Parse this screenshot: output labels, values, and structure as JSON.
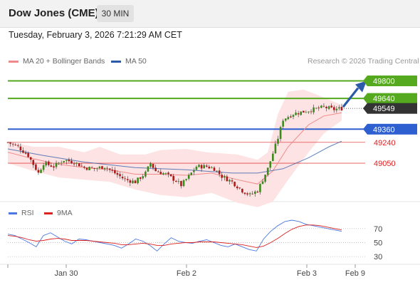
{
  "header": {
    "title": "Dow Jones (CME)",
    "timeframe": "30 MIN"
  },
  "timestamp": "Tuesday, February 3, 2026 7:21:29 AM CET",
  "legend": {
    "ma20": "MA 20 + Bollinger Bands",
    "ma50": "MA 50",
    "credit": "Research © 2026 Trading Central"
  },
  "rsi_legend": {
    "rsi": "RSI",
    "ma9": "9MA"
  },
  "colors": {
    "ma20": "#f08a8a",
    "ma50": "#2b5aa8",
    "green": "#54a91e",
    "blue": "#2d5fd1",
    "red": "#e02020",
    "band": "#fde0e0",
    "price_tag": "#333333",
    "rsi": "#4a78e0",
    "rsi_ma": "#dd2222"
  },
  "chart_data": [
    {
      "type": "candlestick",
      "title": "Dow Jones (CME)",
      "interval": "30 MIN",
      "ylim": [
        48700,
        49920
      ],
      "x_ticks": [
        "Jan 30",
        "Feb 2",
        "Feb 3",
        "Feb 9"
      ],
      "last_price": 49549,
      "levels": [
        {
          "value": 49800,
          "label": "49800",
          "color": "#54a91e",
          "style": "line"
        },
        {
          "value": 49640,
          "label": "49640",
          "color": "#54a91e",
          "style": "line"
        },
        {
          "value": 49360,
          "label": "49360",
          "color": "#2d5fd1",
          "style": "line"
        },
        {
          "value": 49240,
          "label": "49240",
          "color": "#e02020",
          "style": "thin"
        },
        {
          "value": 49050,
          "label": "49050",
          "color": "#e02020",
          "style": "thin"
        }
      ],
      "close_path": [
        [
          0,
          49240
        ],
        [
          4,
          49200
        ],
        [
          8,
          49120
        ],
        [
          12,
          48960
        ],
        [
          14,
          49050
        ],
        [
          18,
          49020
        ],
        [
          22,
          49080
        ],
        [
          26,
          49060
        ],
        [
          30,
          49010
        ],
        [
          34,
          49000
        ],
        [
          38,
          49020
        ],
        [
          42,
          48960
        ],
        [
          46,
          48900
        ],
        [
          50,
          48880
        ],
        [
          54,
          48960
        ],
        [
          56,
          49050
        ],
        [
          58,
          48980
        ],
        [
          62,
          48950
        ],
        [
          66,
          48890
        ],
        [
          68,
          48850
        ],
        [
          71,
          48930
        ],
        [
          74,
          49020
        ],
        [
          78,
          49020
        ],
        [
          81,
          49000
        ],
        [
          84,
          48930
        ],
        [
          88,
          48880
        ],
        [
          92,
          48800
        ],
        [
          95,
          48760
        ],
        [
          98,
          48800
        ],
        [
          102,
          49000
        ],
        [
          106,
          49280
        ],
        [
          108,
          49450
        ],
        [
          112,
          49500
        ],
        [
          116,
          49520
        ],
        [
          120,
          49540
        ],
        [
          124,
          49560
        ],
        [
          128,
          49540
        ],
        [
          131,
          49549
        ]
      ],
      "ma20_path": [
        [
          0,
          49150
        ],
        [
          10,
          49090
        ],
        [
          20,
          49040
        ],
        [
          30,
          49010
        ],
        [
          40,
          48990
        ],
        [
          50,
          48950
        ],
        [
          60,
          48950
        ],
        [
          70,
          48940
        ],
        [
          80,
          48960
        ],
        [
          90,
          48900
        ],
        [
          98,
          48860
        ],
        [
          104,
          48980
        ],
        [
          110,
          49200
        ],
        [
          118,
          49400
        ],
        [
          124,
          49480
        ],
        [
          131,
          49510
        ]
      ],
      "ma50_path": [
        [
          0,
          49180
        ],
        [
          14,
          49120
        ],
        [
          30,
          49060
        ],
        [
          50,
          49010
        ],
        [
          70,
          48990
        ],
        [
          88,
          48960
        ],
        [
          98,
          48960
        ],
        [
          108,
          49000
        ],
        [
          118,
          49100
        ],
        [
          126,
          49200
        ],
        [
          131,
          49250
        ]
      ],
      "band_upper": [
        [
          0,
          49250
        ],
        [
          10,
          49200
        ],
        [
          20,
          49200
        ],
        [
          30,
          49150
        ],
        [
          36,
          49200
        ],
        [
          44,
          49130
        ],
        [
          54,
          49130
        ],
        [
          60,
          49170
        ],
        [
          70,
          49180
        ],
        [
          78,
          49150
        ],
        [
          90,
          49130
        ],
        [
          98,
          49080
        ],
        [
          102,
          49150
        ],
        [
          106,
          49500
        ],
        [
          110,
          49700
        ],
        [
          116,
          49720
        ],
        [
          124,
          49650
        ],
        [
          131,
          49580
        ]
      ],
      "band_lower": [
        [
          0,
          49050
        ],
        [
          10,
          48980
        ],
        [
          20,
          48920
        ],
        [
          30,
          48900
        ],
        [
          40,
          48880
        ],
        [
          50,
          48810
        ],
        [
          60,
          48760
        ],
        [
          70,
          48740
        ],
        [
          80,
          48780
        ],
        [
          90,
          48690
        ],
        [
          98,
          48650
        ],
        [
          104,
          48700
        ],
        [
          110,
          48900
        ],
        [
          118,
          49150
        ],
        [
          124,
          49320
        ],
        [
          131,
          49440
        ]
      ],
      "forecast": {
        "from": 49549,
        "to": 49800
      }
    },
    {
      "type": "line",
      "title": "RSI",
      "ylim": [
        20,
        85
      ],
      "y_ticks": [
        70,
        50,
        30
      ],
      "series": [
        {
          "name": "RSI",
          "values": [
            62,
            60,
            55,
            50,
            44,
            60,
            64,
            58,
            52,
            48,
            55,
            54,
            52,
            50,
            48,
            46,
            42,
            48,
            55,
            52,
            46,
            38,
            48,
            57,
            52,
            50,
            49,
            52,
            54,
            50,
            46,
            44,
            48,
            44,
            40,
            38,
            55,
            66,
            74,
            80,
            82,
            80,
            76,
            74,
            72,
            70,
            68,
            66
          ]
        },
        {
          "name": "9MA",
          "values": [
            60,
            59,
            57,
            54,
            52,
            53,
            55,
            56,
            55,
            53,
            53,
            53,
            52,
            51,
            50,
            49,
            47,
            47,
            48,
            49,
            48,
            46,
            46,
            48,
            49,
            50,
            50,
            51,
            51,
            51,
            50,
            49,
            48,
            47,
            45,
            43,
            45,
            50,
            56,
            63,
            69,
            73,
            75,
            75,
            74,
            72,
            70,
            68
          ]
        }
      ]
    }
  ]
}
